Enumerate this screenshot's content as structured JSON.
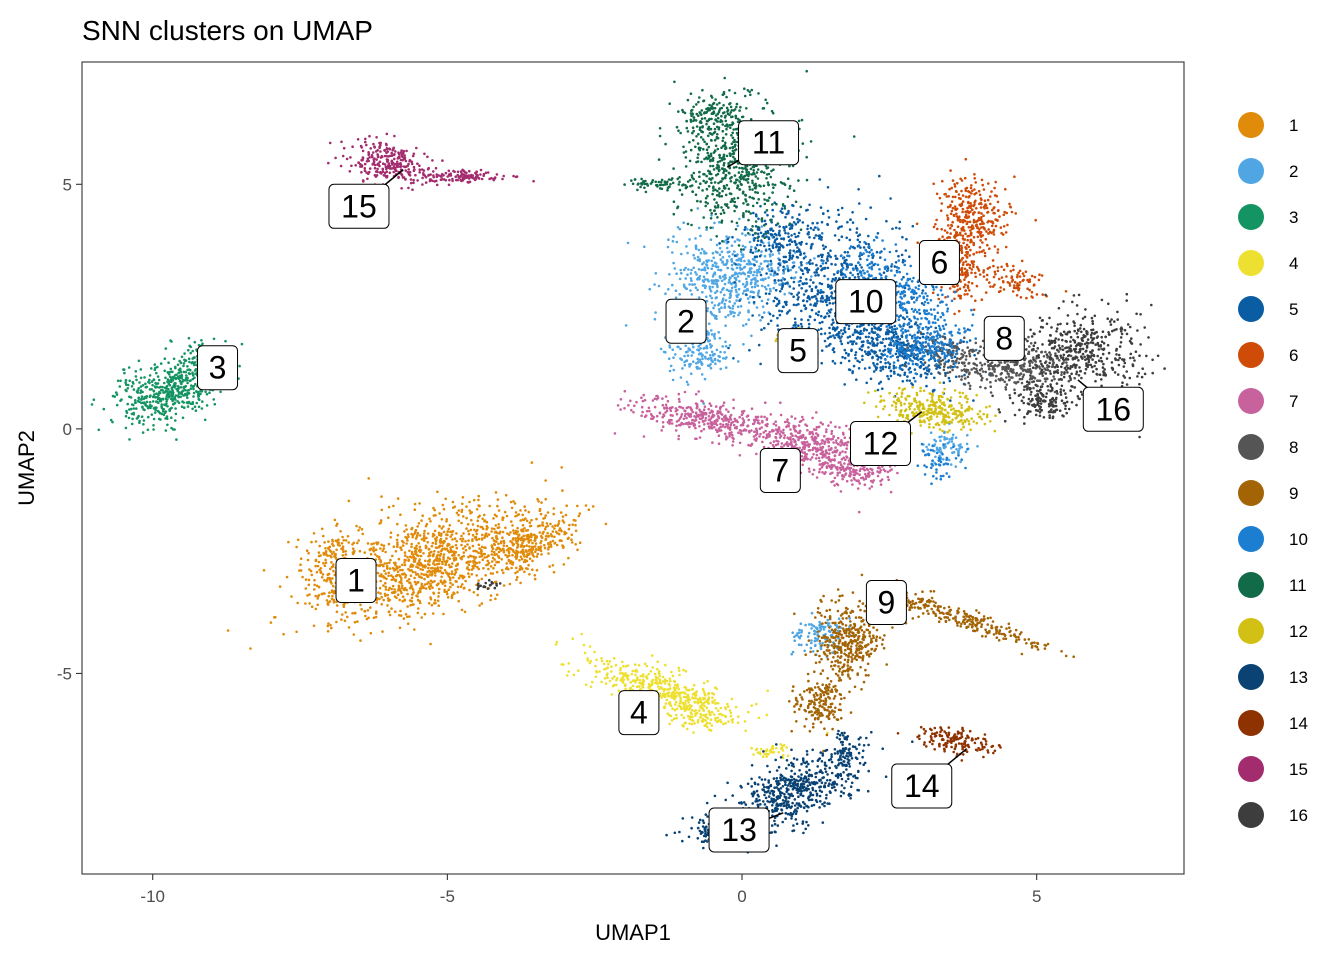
{
  "chart_data": {
    "type": "scatter",
    "title": "SNN clusters on UMAP",
    "xlabel": "UMAP1",
    "ylabel": "UMAP2",
    "xlim": [
      -11.2,
      7.5
    ],
    "ylim": [
      -9.1,
      7.5
    ],
    "x_ticks": [
      -10,
      -5,
      0,
      5
    ],
    "y_ticks": [
      -5,
      0,
      5
    ],
    "x_tick_labels": [
      "-10",
      "-5",
      "0",
      "5"
    ],
    "y_tick_labels": [
      "-5",
      "0",
      "5"
    ],
    "grid": false,
    "legend_position": "right",
    "series": [
      {
        "name": "1",
        "color": "#E08B0A",
        "label": {
          "text": "1",
          "x": -6.55,
          "y": -3.1
        },
        "anchor": {
          "x": -6.55,
          "y": -3.0
        },
        "blobs": [
          {
            "x": -5.3,
            "y": -2.7,
            "rx": 1.75,
            "ry": 0.9,
            "rot": 18,
            "n": 1100
          },
          {
            "x": -3.6,
            "y": -2.3,
            "rx": 0.75,
            "ry": 0.45,
            "rot": 25,
            "n": 280
          },
          {
            "x": -6.9,
            "y": -2.9,
            "rx": 0.45,
            "ry": 0.75,
            "rot": 0,
            "n": 220
          }
        ]
      },
      {
        "name": "2",
        "color": "#4FA6E3",
        "label": {
          "text": "2",
          "x": -0.95,
          "y": 2.2
        },
        "anchor": {
          "x": -0.95,
          "y": 2.2
        },
        "blobs": [
          {
            "x": -0.2,
            "y": 3.1,
            "rx": 0.95,
            "ry": 0.85,
            "rot": 0,
            "n": 520
          },
          {
            "x": -0.75,
            "y": 1.6,
            "rx": 0.5,
            "ry": 0.55,
            "rot": 0,
            "n": 170
          },
          {
            "x": 1.3,
            "y": -4.2,
            "rx": 0.4,
            "ry": 0.35,
            "rot": 0,
            "n": 110
          },
          {
            "x": 3.5,
            "y": -0.4,
            "rx": 0.35,
            "ry": 0.3,
            "rot": 0,
            "n": 80
          }
        ]
      },
      {
        "name": "3",
        "color": "#159463",
        "label": {
          "text": "3",
          "x": -8.9,
          "y": 1.25
        },
        "anchor": {
          "x": -8.9,
          "y": 1.25
        },
        "blobs": [
          {
            "x": -9.7,
            "y": 0.8,
            "rx": 0.85,
            "ry": 0.55,
            "rot": 20,
            "n": 520
          },
          {
            "x": -9.1,
            "y": 1.4,
            "rx": 0.35,
            "ry": 0.35,
            "rot": 0,
            "n": 90
          }
        ]
      },
      {
        "name": "4",
        "color": "#EDE030",
        "label": {
          "text": "4",
          "x": -1.75,
          "y": -5.8
        },
        "anchor": {
          "x": -1.75,
          "y": -5.8
        },
        "blobs": [
          {
            "x": -1.4,
            "y": -5.3,
            "rx": 1.25,
            "ry": 0.38,
            "rot": -18,
            "n": 420
          },
          {
            "x": -0.7,
            "y": -5.8,
            "rx": 0.45,
            "ry": 0.3,
            "rot": 0,
            "n": 100
          },
          {
            "x": 0.5,
            "y": -6.6,
            "rx": 0.35,
            "ry": 0.12,
            "rot": 0,
            "n": 40
          }
        ]
      },
      {
        "name": "5",
        "color": "#0A5CA3",
        "label": {
          "text": "5",
          "x": 0.95,
          "y": 1.6
        },
        "anchor": {
          "x": 0.95,
          "y": 1.6
        },
        "blobs": [
          {
            "x": 1.5,
            "y": 2.9,
            "rx": 1.2,
            "ry": 1.35,
            "rot": -30,
            "n": 650
          },
          {
            "x": 2.6,
            "y": 1.6,
            "rx": 1.1,
            "ry": 0.6,
            "rot": -15,
            "n": 420
          },
          {
            "x": 0.6,
            "y": 4.0,
            "rx": 0.6,
            "ry": 0.5,
            "rot": 0,
            "n": 150
          }
        ]
      },
      {
        "name": "6",
        "color": "#CF4C08",
        "label": {
          "text": "6",
          "x": 3.35,
          "y": 3.4
        },
        "anchor": {
          "x": 3.5,
          "y": 3.7
        },
        "blobs": [
          {
            "x": 3.9,
            "y": 4.3,
            "rx": 0.55,
            "ry": 0.75,
            "rot": 0,
            "n": 340
          },
          {
            "x": 3.7,
            "y": 3.2,
            "rx": 0.35,
            "ry": 0.6,
            "rot": 0,
            "n": 130
          },
          {
            "x": 4.6,
            "y": 3.0,
            "rx": 0.6,
            "ry": 0.3,
            "rot": -20,
            "n": 90
          }
        ]
      },
      {
        "name": "7",
        "color": "#C8629D",
        "label": {
          "text": "7",
          "x": 0.65,
          "y": -0.85
        },
        "anchor": {
          "x": 0.65,
          "y": -0.85
        },
        "blobs": [
          {
            "x": -0.6,
            "y": 0.2,
            "rx": 1.15,
            "ry": 0.35,
            "rot": -10,
            "n": 380
          },
          {
            "x": 1.2,
            "y": -0.35,
            "rx": 1.0,
            "ry": 0.45,
            "rot": -15,
            "n": 420
          },
          {
            "x": 2.0,
            "y": -0.9,
            "rx": 0.5,
            "ry": 0.3,
            "rot": 0,
            "n": 120
          }
        ]
      },
      {
        "name": "8",
        "color": "#555555",
        "label": {
          "text": "8",
          "x": 4.45,
          "y": 1.85
        },
        "anchor": {
          "x": 4.45,
          "y": 1.85
        },
        "blobs": [
          {
            "x": 4.6,
            "y": 1.3,
            "rx": 0.9,
            "ry": 0.45,
            "rot": 0,
            "n": 380
          },
          {
            "x": 3.4,
            "y": 1.6,
            "rx": 0.45,
            "ry": 0.35,
            "rot": 0,
            "n": 100
          }
        ]
      },
      {
        "name": "9",
        "color": "#A36405",
        "label": {
          "text": "9",
          "x": 2.45,
          "y": -3.55
        },
        "anchor": {
          "x": 2.45,
          "y": -3.55
        },
        "blobs": [
          {
            "x": 1.8,
            "y": -4.4,
            "rx": 0.5,
            "ry": 0.75,
            "rot": 0,
            "n": 360
          },
          {
            "x": 3.8,
            "y": -3.9,
            "rx": 1.25,
            "ry": 0.18,
            "rot": -20,
            "n": 220
          },
          {
            "x": 1.3,
            "y": -5.6,
            "rx": 0.4,
            "ry": 0.5,
            "rot": 0,
            "n": 170
          },
          {
            "x": 2.6,
            "y": -3.6,
            "rx": 0.5,
            "ry": 0.3,
            "rot": 0,
            "n": 120
          }
        ]
      },
      {
        "name": "10",
        "color": "#1C7ED0",
        "label": {
          "text": "10",
          "x": 2.1,
          "y": 2.6
        },
        "anchor": {
          "x": 2.1,
          "y": 2.6
        },
        "blobs": [
          {
            "x": 2.6,
            "y": 2.8,
            "rx": 1.0,
            "ry": 0.6,
            "rot": -30,
            "n": 340
          },
          {
            "x": 3.1,
            "y": 1.7,
            "rx": 0.7,
            "ry": 0.4,
            "rot": 0,
            "n": 200
          },
          {
            "x": 3.3,
            "y": -0.7,
            "rx": 0.3,
            "ry": 0.3,
            "rot": 0,
            "n": 50
          }
        ]
      },
      {
        "name": "11",
        "color": "#126B48",
        "label": {
          "text": "11",
          "x": 0.45,
          "y": 5.85
        },
        "anchor": {
          "x": -0.25,
          "y": 5.35
        },
        "blobs": [
          {
            "x": -0.1,
            "y": 5.4,
            "rx": 0.85,
            "ry": 1.15,
            "rot": 0,
            "n": 620
          },
          {
            "x": -0.5,
            "y": 6.4,
            "rx": 0.5,
            "ry": 0.35,
            "rot": 0,
            "n": 130
          },
          {
            "x": -1.4,
            "y": 5.0,
            "rx": 0.5,
            "ry": 0.12,
            "rot": 0,
            "n": 60
          }
        ]
      },
      {
        "name": "12",
        "color": "#D2C114",
        "label": {
          "text": "12",
          "x": 2.35,
          "y": -0.3
        },
        "anchor": {
          "x": 3.05,
          "y": 0.35
        },
        "blobs": [
          {
            "x": 3.2,
            "y": 0.4,
            "rx": 0.85,
            "ry": 0.35,
            "rot": -8,
            "n": 300
          },
          {
            "x": 0.8,
            "y": 1.8,
            "rx": 0.3,
            "ry": 0.18,
            "rot": 0,
            "n": 40
          }
        ]
      },
      {
        "name": "13",
        "color": "#094273",
        "label": {
          "text": "13",
          "x": -0.05,
          "y": -8.2
        },
        "anchor": {
          "x": 0.7,
          "y": -7.85
        },
        "blobs": [
          {
            "x": 0.9,
            "y": -7.4,
            "rx": 1.1,
            "ry": 0.55,
            "rot": 25,
            "n": 560
          },
          {
            "x": -0.3,
            "y": -8.2,
            "rx": 0.6,
            "ry": 0.25,
            "rot": 0,
            "n": 170
          },
          {
            "x": 1.8,
            "y": -6.6,
            "rx": 0.3,
            "ry": 0.35,
            "rot": 0,
            "n": 70
          }
        ]
      },
      {
        "name": "14",
        "color": "#8E3201",
        "label": {
          "text": "14",
          "x": 3.05,
          "y": -7.3
        },
        "anchor": {
          "x": 3.8,
          "y": -6.55
        },
        "blobs": [
          {
            "x": 3.65,
            "y": -6.4,
            "rx": 0.6,
            "ry": 0.25,
            "rot": -10,
            "n": 150
          }
        ]
      },
      {
        "name": "15",
        "color": "#A32C6E",
        "label": {
          "text": "15",
          "x": -6.5,
          "y": 4.55
        },
        "anchor": {
          "x": -5.75,
          "y": 5.3
        },
        "blobs": [
          {
            "x": -6.0,
            "y": 5.45,
            "rx": 0.6,
            "ry": 0.35,
            "rot": -10,
            "n": 260
          },
          {
            "x": -4.9,
            "y": 5.15,
            "rx": 0.75,
            "ry": 0.13,
            "rot": 0,
            "n": 130
          }
        ]
      },
      {
        "name": "16",
        "color": "#3D3D3D",
        "label": {
          "text": "16",
          "x": 6.3,
          "y": 0.4
        },
        "anchor": {
          "x": 5.7,
          "y": 1.0
        },
        "blobs": [
          {
            "x": 5.8,
            "y": 1.6,
            "rx": 0.9,
            "ry": 0.75,
            "rot": 0,
            "n": 420
          },
          {
            "x": 5.1,
            "y": 0.6,
            "rx": 0.55,
            "ry": 0.35,
            "rot": 0,
            "n": 150
          },
          {
            "x": -4.3,
            "y": -3.2,
            "rx": 0.18,
            "ry": 0.1,
            "rot": 0,
            "n": 20
          }
        ]
      }
    ]
  }
}
